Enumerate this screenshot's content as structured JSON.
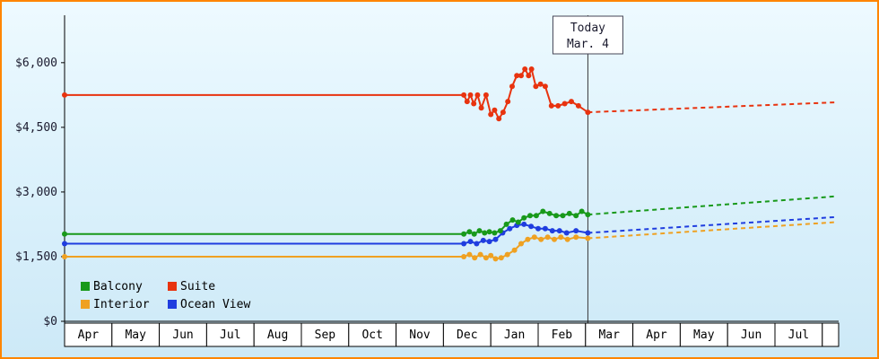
{
  "colors": {
    "frame_border": "#ff8500",
    "axis": "#000000",
    "label_text": "#1a1a2e",
    "cell_fill": "#ffffff",
    "today_line": "#3a3a3a"
  },
  "chart_data": {
    "type": "line",
    "title": "",
    "xlabel": "",
    "ylabel": "",
    "y_axis": {
      "ticks": [
        0,
        1500,
        3000,
        4500,
        6000
      ],
      "labels": [
        "$0",
        "$1,500",
        "$3,000",
        "$4,500",
        "$6,000"
      ],
      "max": 7100
    },
    "x_axis": {
      "months": [
        "Apr",
        "May",
        "Jun",
        "Jul",
        "Aug",
        "Sep",
        "Oct",
        "Nov",
        "Dec",
        "Jan",
        "Feb",
        "Mar",
        "Apr",
        "May",
        "Jun",
        "Jul"
      ]
    },
    "today": {
      "label_line1": "Today",
      "label_line2": "Mar. 4",
      "month_position": 11.05
    },
    "series": [
      {
        "name": "Interior",
        "color": "#efa122",
        "points": [
          [
            0,
            1500
          ],
          [
            8.43,
            1500
          ],
          [
            8.55,
            1550
          ],
          [
            8.66,
            1475
          ],
          [
            8.78,
            1550
          ],
          [
            8.9,
            1475
          ],
          [
            9.0,
            1525
          ],
          [
            9.1,
            1450
          ],
          [
            9.22,
            1475
          ],
          [
            9.35,
            1550
          ],
          [
            9.5,
            1650
          ],
          [
            9.64,
            1800
          ],
          [
            9.78,
            1900
          ],
          [
            9.92,
            1950
          ],
          [
            10.06,
            1900
          ],
          [
            10.2,
            1950
          ],
          [
            10.34,
            1900
          ],
          [
            10.48,
            1950
          ],
          [
            10.62,
            1900
          ],
          [
            10.8,
            1950
          ],
          [
            11.05,
            1925
          ]
        ],
        "projection": [
          [
            11.05,
            1925
          ],
          [
            16.3,
            2300
          ]
        ]
      },
      {
        "name": "Ocean View",
        "color": "#1f3ddf",
        "points": [
          [
            0,
            1800
          ],
          [
            8.43,
            1800
          ],
          [
            8.57,
            1850
          ],
          [
            8.7,
            1800
          ],
          [
            8.84,
            1875
          ],
          [
            8.97,
            1850
          ],
          [
            9.1,
            1900
          ],
          [
            9.25,
            2050
          ],
          [
            9.4,
            2150
          ],
          [
            9.55,
            2225
          ],
          [
            9.7,
            2250
          ],
          [
            9.85,
            2200
          ],
          [
            10.0,
            2150
          ],
          [
            10.15,
            2150
          ],
          [
            10.3,
            2100
          ],
          [
            10.45,
            2100
          ],
          [
            10.6,
            2050
          ],
          [
            10.8,
            2100
          ],
          [
            11.05,
            2050
          ]
        ],
        "projection": [
          [
            11.05,
            2050
          ],
          [
            16.3,
            2420
          ]
        ]
      },
      {
        "name": "Balcony",
        "color": "#18991a",
        "points": [
          [
            0,
            2025
          ],
          [
            8.43,
            2025
          ],
          [
            8.55,
            2075
          ],
          [
            8.65,
            2025
          ],
          [
            8.76,
            2100
          ],
          [
            8.87,
            2050
          ],
          [
            8.97,
            2075
          ],
          [
            9.08,
            2050
          ],
          [
            9.2,
            2100
          ],
          [
            9.33,
            2250
          ],
          [
            9.46,
            2350
          ],
          [
            9.58,
            2300
          ],
          [
            9.7,
            2400
          ],
          [
            9.83,
            2450
          ],
          [
            9.96,
            2450
          ],
          [
            10.1,
            2550
          ],
          [
            10.24,
            2500
          ],
          [
            10.38,
            2450
          ],
          [
            10.52,
            2450
          ],
          [
            10.66,
            2500
          ],
          [
            10.8,
            2450
          ],
          [
            10.92,
            2550
          ],
          [
            11.05,
            2475
          ]
        ],
        "projection": [
          [
            11.05,
            2475
          ],
          [
            16.3,
            2900
          ]
        ]
      },
      {
        "name": "Suite",
        "color": "#e8330f",
        "points": [
          [
            0,
            5250
          ],
          [
            8.43,
            5250
          ],
          [
            8.5,
            5100
          ],
          [
            8.57,
            5250
          ],
          [
            8.64,
            5050
          ],
          [
            8.72,
            5250
          ],
          [
            8.8,
            4950
          ],
          [
            8.9,
            5250
          ],
          [
            9.0,
            4800
          ],
          [
            9.08,
            4900
          ],
          [
            9.17,
            4700
          ],
          [
            9.26,
            4850
          ],
          [
            9.36,
            5100
          ],
          [
            9.45,
            5450
          ],
          [
            9.55,
            5700
          ],
          [
            9.64,
            5700
          ],
          [
            9.72,
            5850
          ],
          [
            9.8,
            5700
          ],
          [
            9.86,
            5850
          ],
          [
            9.95,
            5450
          ],
          [
            10.05,
            5500
          ],
          [
            10.15,
            5450
          ],
          [
            10.28,
            5000
          ],
          [
            10.42,
            5000
          ],
          [
            10.56,
            5050
          ],
          [
            10.7,
            5100
          ],
          [
            10.85,
            5000
          ],
          [
            11.05,
            4850
          ]
        ],
        "projection": [
          [
            11.05,
            4850
          ],
          [
            16.3,
            5080
          ]
        ]
      }
    ],
    "legend": {
      "rows": [
        [
          "Balcony",
          "Suite"
        ],
        [
          "Interior",
          "Ocean View"
        ]
      ]
    }
  }
}
